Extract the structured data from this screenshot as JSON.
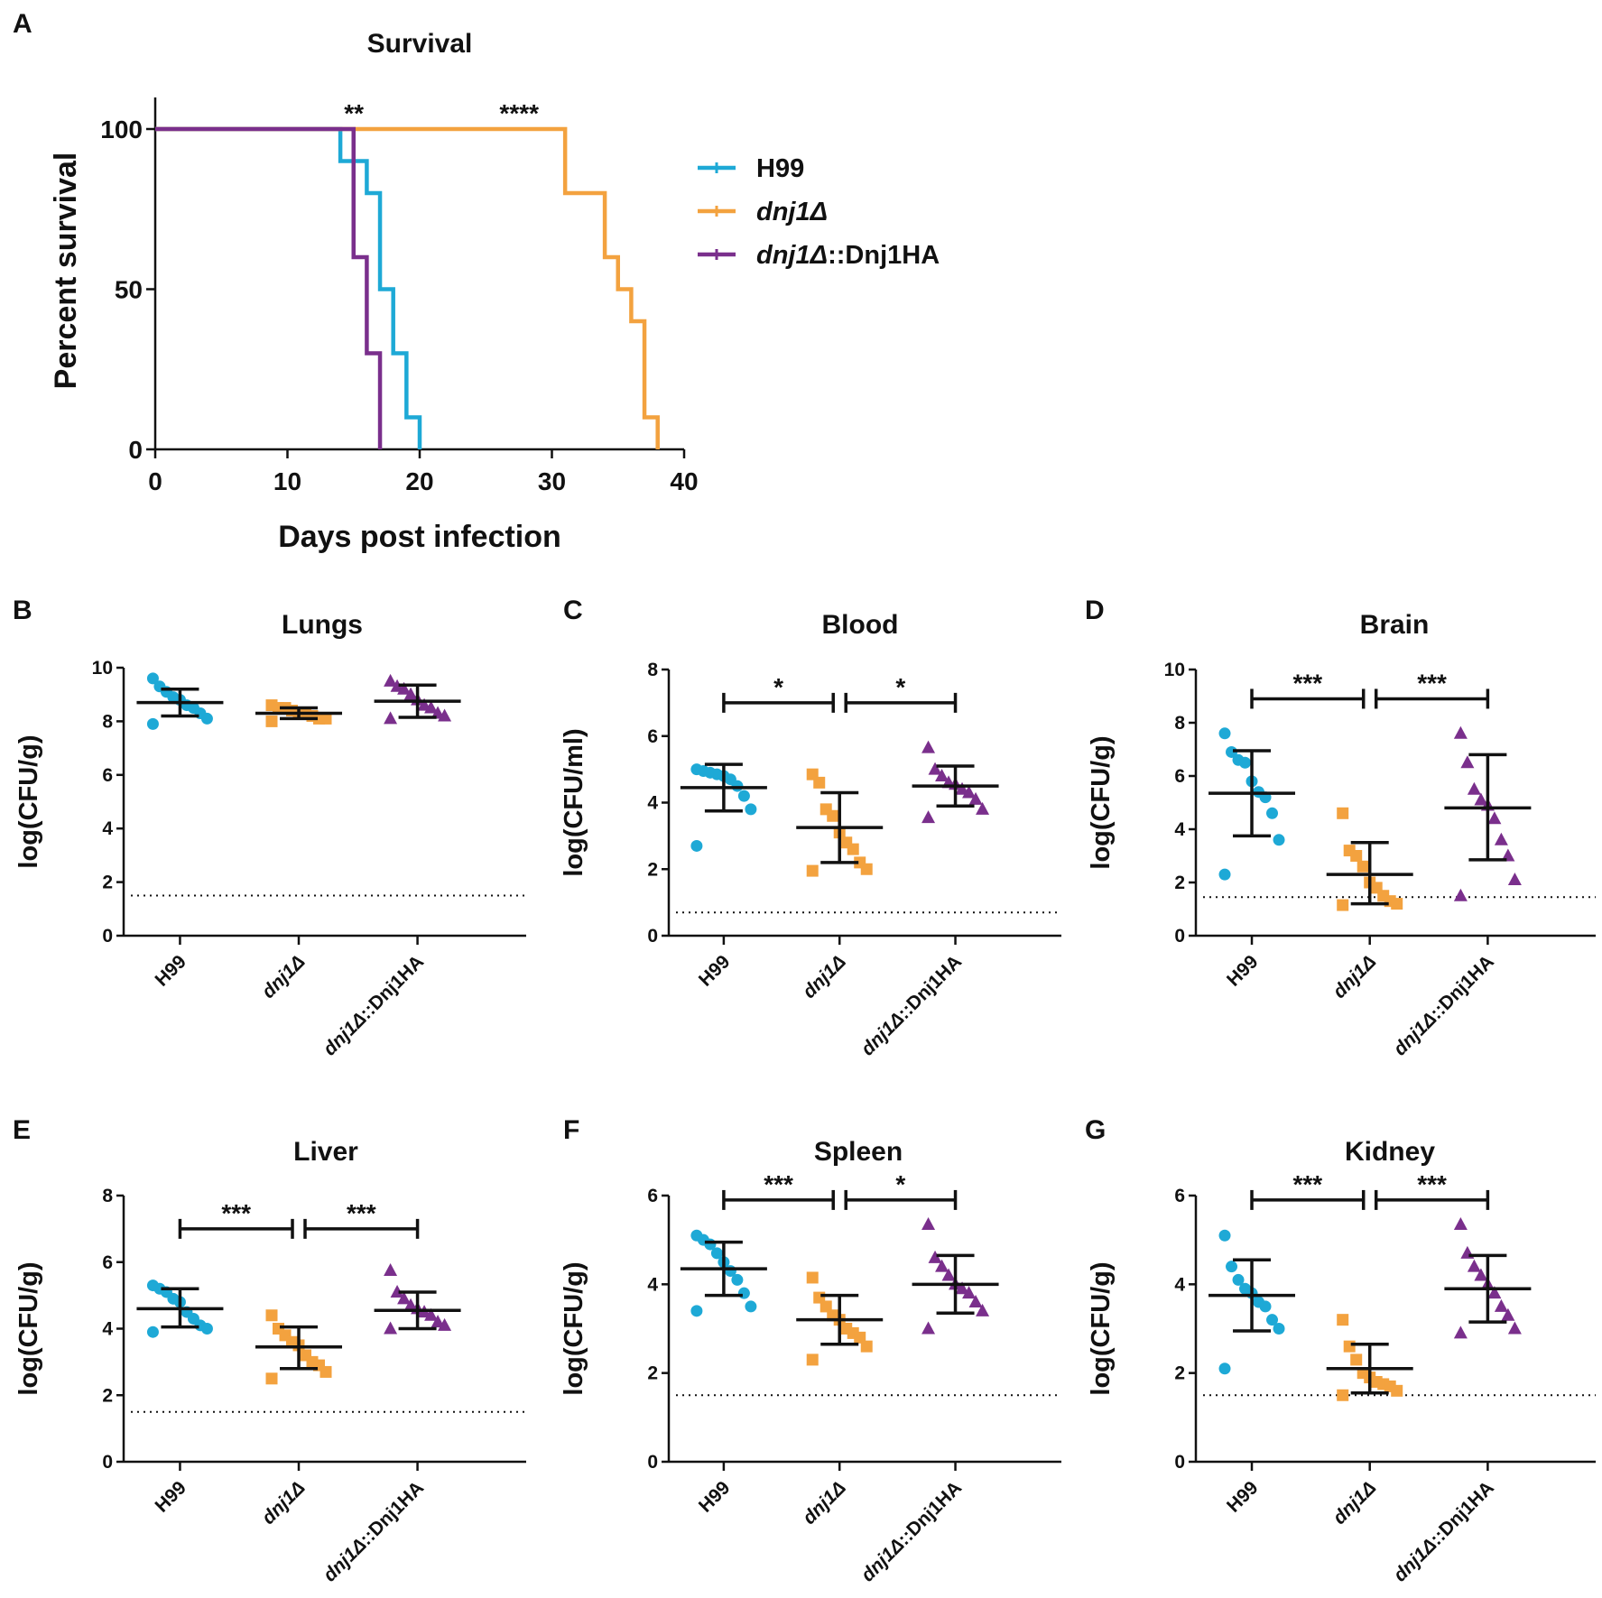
{
  "chart_data": [
    {
      "panel": "A",
      "type": "line",
      "step": true,
      "title": "Survival",
      "xlabel": "Days post infection",
      "ylabel": "Percent survival",
      "xlim": [
        0,
        40
      ],
      "ylim": [
        0,
        100
      ],
      "xticks": [
        0,
        10,
        20,
        30,
        40
      ],
      "yticks": [
        0,
        50,
        100
      ],
      "legend_position": "right",
      "significance": [
        {
          "label": "**",
          "x": 14
        },
        {
          "label": "****",
          "x": 26.5
        }
      ],
      "series": [
        {
          "name": "H99",
          "name_parts": [
            {
              "text": "H99",
              "italic": false
            }
          ],
          "color": "#1ea9d6",
          "x": [
            0,
            14,
            16,
            17,
            18,
            19,
            20
          ],
          "y": [
            100,
            90,
            80,
            50,
            30,
            10,
            0
          ]
        },
        {
          "name": "dnj1Δ",
          "name_parts": [
            {
              "text": "dnj1Δ",
              "italic": true
            }
          ],
          "color": "#f3a23f",
          "x": [
            0,
            31,
            34,
            35,
            36,
            37,
            38
          ],
          "y": [
            100,
            80,
            60,
            50,
            40,
            10,
            0
          ]
        },
        {
          "name": "dnj1Δ::Dnj1HA",
          "name_parts": [
            {
              "text": "dnj1Δ",
              "italic": true
            },
            {
              "text": "::Dnj1HA",
              "italic": false
            }
          ],
          "color": "#7a2f8c",
          "x": [
            0,
            15,
            16,
            17
          ],
          "y": [
            100,
            60,
            30,
            0
          ]
        }
      ]
    },
    {
      "panel": "B",
      "type": "scatter",
      "title": "Lungs",
      "ylabel": "log(CFU/g)",
      "ylim": [
        0,
        10
      ],
      "yticks": [
        0,
        2,
        4,
        6,
        8,
        10
      ],
      "detection_limit": 1.5,
      "categories": [
        "H99",
        "dnj1Δ",
        "dnj1Δ::Dnj1HA"
      ],
      "groups": [
        {
          "points": [
            9.6,
            9.3,
            9.1,
            8.9,
            8.8,
            8.6,
            8.5,
            8.3,
            8.1,
            7.9
          ],
          "mean": 8.7,
          "sd_low": 8.2,
          "sd_high": 9.2
        },
        {
          "points": [
            8.6,
            8.5,
            8.5,
            8.4,
            8.3,
            8.3,
            8.2,
            8.1,
            8.1,
            8.0
          ],
          "mean": 8.3,
          "sd_low": 8.1,
          "sd_high": 8.5
        },
        {
          "points": [
            9.5,
            9.3,
            9.2,
            9.0,
            8.8,
            8.6,
            8.5,
            8.3,
            8.2,
            8.1
          ],
          "mean": 8.75,
          "sd_low": 8.15,
          "sd_high": 9.35
        }
      ],
      "comparisons": []
    },
    {
      "panel": "C",
      "type": "scatter",
      "title": "Blood",
      "ylabel": "log(CFU/ml)",
      "ylim": [
        0,
        8
      ],
      "yticks": [
        0,
        2,
        4,
        6,
        8
      ],
      "detection_limit": 0.7,
      "categories": [
        "H99",
        "dnj1Δ",
        "dnj1Δ::Dnj1HA"
      ],
      "groups": [
        {
          "points": [
            5.0,
            4.95,
            4.9,
            4.85,
            4.8,
            4.7,
            4.5,
            4.2,
            3.8,
            2.7
          ],
          "mean": 4.45,
          "sd_low": 3.75,
          "sd_high": 5.15
        },
        {
          "points": [
            4.85,
            4.6,
            3.8,
            3.6,
            3.1,
            2.8,
            2.6,
            2.2,
            2.0,
            1.95
          ],
          "mean": 3.25,
          "sd_low": 2.2,
          "sd_high": 4.3
        },
        {
          "points": [
            5.65,
            5.0,
            4.8,
            4.6,
            4.55,
            4.4,
            4.3,
            4.1,
            3.8,
            3.55
          ],
          "mean": 4.5,
          "sd_low": 3.9,
          "sd_high": 5.1
        }
      ],
      "comparisons": [
        {
          "from": 0,
          "to": 1,
          "label": "*",
          "y": 7.0
        },
        {
          "from": 1,
          "to": 2,
          "label": "*",
          "y": 7.0
        }
      ]
    },
    {
      "panel": "D",
      "type": "scatter",
      "title": "Brain",
      "ylabel": "log(CFU/g)",
      "ylim": [
        0,
        10
      ],
      "yticks": [
        0,
        2,
        4,
        6,
        8,
        10
      ],
      "detection_limit": 1.45,
      "categories": [
        "H99",
        "dnj1Δ",
        "dnj1Δ::Dnj1HA"
      ],
      "groups": [
        {
          "points": [
            7.6,
            6.9,
            6.6,
            6.5,
            5.8,
            5.4,
            5.2,
            4.6,
            3.6,
            2.3
          ],
          "mean": 5.35,
          "sd_low": 3.75,
          "sd_high": 6.95
        },
        {
          "points": [
            4.6,
            3.2,
            3.0,
            2.6,
            2.0,
            1.8,
            1.5,
            1.3,
            1.2,
            1.15
          ],
          "mean": 2.3,
          "sd_low": 1.2,
          "sd_high": 3.5
        },
        {
          "points": [
            7.6,
            6.5,
            5.5,
            5.1,
            4.9,
            4.4,
            3.6,
            3.0,
            2.1,
            1.5
          ],
          "mean": 4.8,
          "sd_low": 2.85,
          "sd_high": 6.8
        }
      ],
      "comparisons": [
        {
          "from": 0,
          "to": 1,
          "label": "***",
          "y": 8.9
        },
        {
          "from": 1,
          "to": 2,
          "label": "***",
          "y": 8.9
        }
      ]
    },
    {
      "panel": "E",
      "type": "scatter",
      "title": "Liver",
      "ylabel": "log(CFU/g)",
      "ylim": [
        0,
        8
      ],
      "yticks": [
        0,
        2,
        4,
        6,
        8
      ],
      "detection_limit": 1.5,
      "categories": [
        "H99",
        "dnj1Δ",
        "dnj1Δ::Dnj1HA"
      ],
      "groups": [
        {
          "points": [
            5.3,
            5.2,
            5.1,
            4.9,
            4.8,
            4.5,
            4.3,
            4.1,
            4.0,
            3.9
          ],
          "mean": 4.6,
          "sd_low": 4.05,
          "sd_high": 5.2
        },
        {
          "points": [
            4.4,
            4.0,
            3.8,
            3.6,
            3.5,
            3.2,
            3.0,
            2.9,
            2.7,
            2.5
          ],
          "mean": 3.45,
          "sd_low": 2.8,
          "sd_high": 4.05
        },
        {
          "points": [
            5.75,
            5.1,
            4.9,
            4.7,
            4.6,
            4.5,
            4.4,
            4.2,
            4.1,
            4.0
          ],
          "mean": 4.55,
          "sd_low": 4.0,
          "sd_high": 5.1
        }
      ],
      "comparisons": [
        {
          "from": 0,
          "to": 1,
          "label": "***",
          "y": 7.0
        },
        {
          "from": 1,
          "to": 2,
          "label": "***",
          "y": 7.0
        }
      ]
    },
    {
      "panel": "F",
      "type": "scatter",
      "title": "Spleen",
      "ylabel": "log(CFU/g)",
      "ylim": [
        0,
        6
      ],
      "yticks": [
        0,
        2,
        4,
        6
      ],
      "detection_limit": 1.5,
      "categories": [
        "H99",
        "dnj1Δ",
        "dnj1Δ::Dnj1HA"
      ],
      "groups": [
        {
          "points": [
            5.1,
            5.0,
            4.9,
            4.7,
            4.5,
            4.3,
            4.1,
            3.8,
            3.5,
            3.4
          ],
          "mean": 4.35,
          "sd_low": 3.75,
          "sd_high": 4.95
        },
        {
          "points": [
            4.15,
            3.7,
            3.5,
            3.3,
            3.2,
            3.0,
            2.9,
            2.8,
            2.6,
            2.3
          ],
          "mean": 3.2,
          "sd_low": 2.65,
          "sd_high": 3.75
        },
        {
          "points": [
            5.35,
            4.6,
            4.4,
            4.2,
            4.0,
            3.9,
            3.8,
            3.6,
            3.4,
            3.0
          ],
          "mean": 4.0,
          "sd_low": 3.35,
          "sd_high": 4.65
        }
      ],
      "comparisons": [
        {
          "from": 0,
          "to": 1,
          "label": "***",
          "y": 5.9
        },
        {
          "from": 1,
          "to": 2,
          "label": "*",
          "y": 5.9
        }
      ]
    },
    {
      "panel": "G",
      "type": "scatter",
      "title": "Kidney",
      "ylabel": "log(CFU/g)",
      "ylim": [
        0,
        6
      ],
      "yticks": [
        0,
        2,
        4,
        6
      ],
      "detection_limit": 1.5,
      "categories": [
        "H99",
        "dnj1Δ",
        "dnj1Δ::Dnj1HA"
      ],
      "groups": [
        {
          "points": [
            5.1,
            4.4,
            4.1,
            3.9,
            3.8,
            3.6,
            3.5,
            3.2,
            3.0,
            2.1
          ],
          "mean": 3.75,
          "sd_low": 2.95,
          "sd_high": 4.55
        },
        {
          "points": [
            3.2,
            2.6,
            2.3,
            2.0,
            1.9,
            1.8,
            1.75,
            1.7,
            1.6,
            1.5
          ],
          "mean": 2.1,
          "sd_low": 1.55,
          "sd_high": 2.65
        },
        {
          "points": [
            5.35,
            4.7,
            4.4,
            4.2,
            4.0,
            3.8,
            3.5,
            3.3,
            3.0,
            2.9
          ],
          "mean": 3.9,
          "sd_low": 3.15,
          "sd_high": 4.65
        }
      ],
      "comparisons": [
        {
          "from": 0,
          "to": 1,
          "label": "***",
          "y": 5.9
        },
        {
          "from": 1,
          "to": 2,
          "label": "***",
          "y": 5.9
        }
      ]
    }
  ],
  "colors": {
    "H99": "#1ea9d6",
    "dnj1": "#f3a23f",
    "complement": "#7a2f8c",
    "ink": "#111111"
  },
  "marker_shapes": [
    "circle",
    "square",
    "triangle"
  ]
}
